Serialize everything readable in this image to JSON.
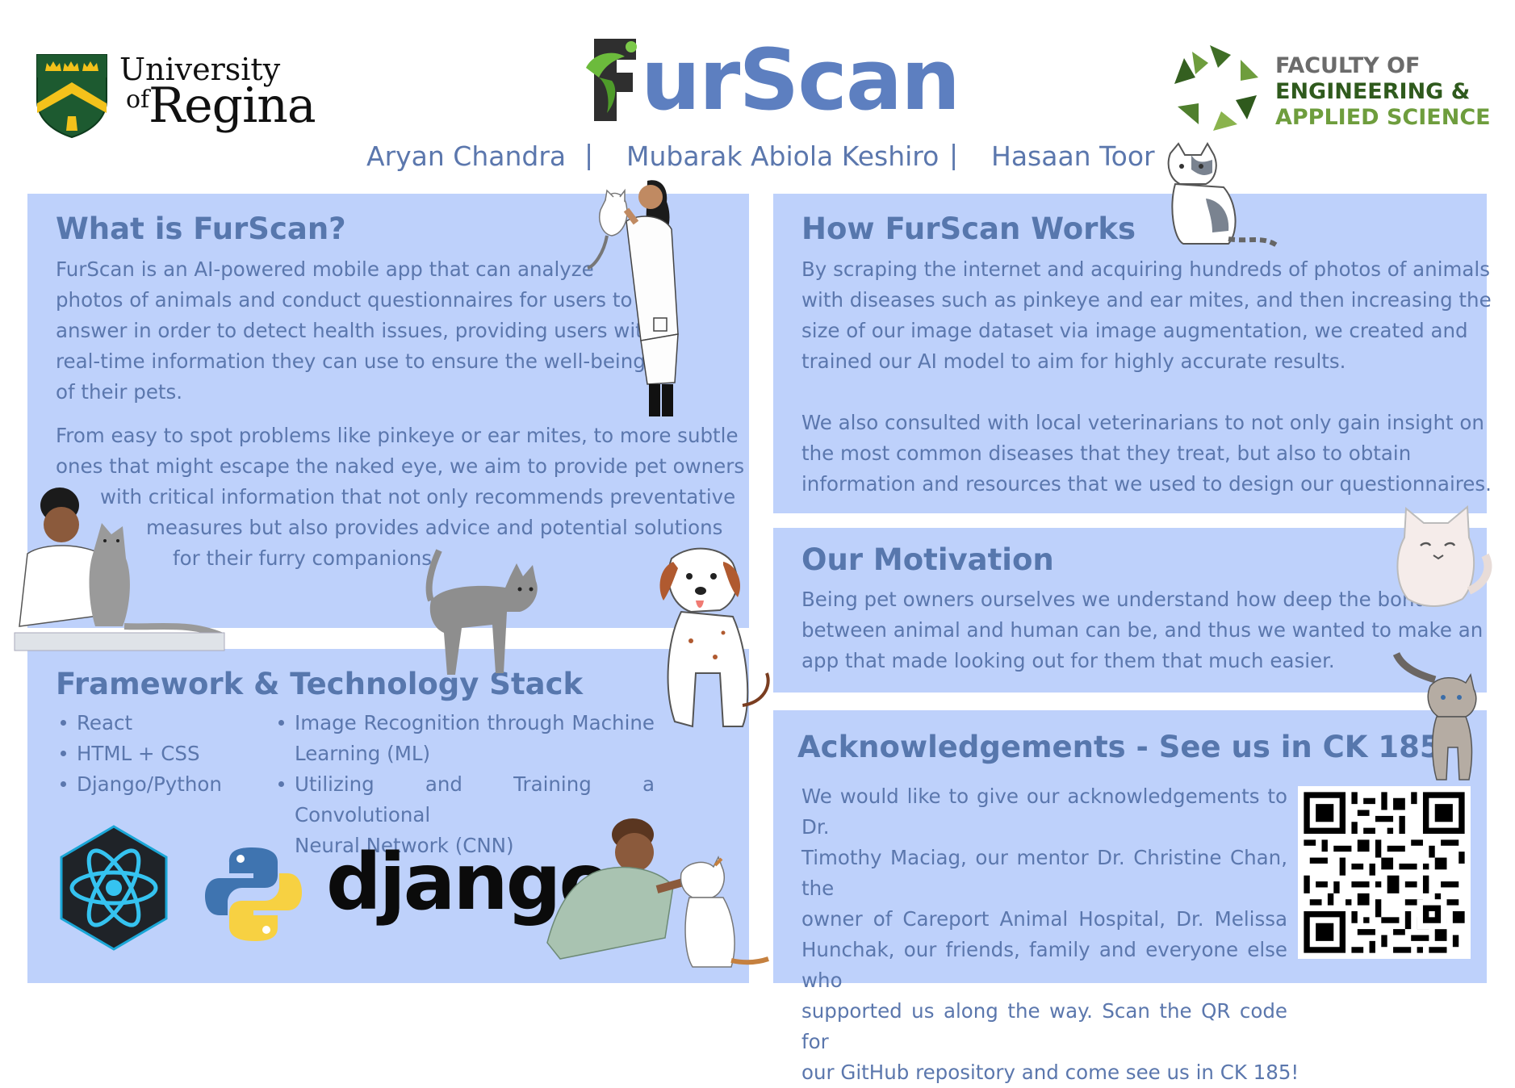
{
  "header": {
    "university": {
      "line1": "University",
      "of": "of",
      "line2": "Regina"
    },
    "title": "FurScan",
    "title_rest": "urScan",
    "authors": [
      "Aryan Chandra",
      "Mubarak Abiola Keshiro",
      "Hasaan Toor"
    ],
    "separator": "|",
    "faculty": {
      "line1": "FACULTY OF",
      "line2": "ENGINEERING &",
      "line3": "APPLIED SCIENCE"
    }
  },
  "what": {
    "heading": "What is FurScan?",
    "p1": [
      "FurScan is an AI-powered mobile app that can analyze",
      "photos of animals and conduct questionnaires for users to",
      "answer in order to detect health issues, providing users with",
      "real-time information they can use to ensure the well-being",
      "of their pets."
    ],
    "p2": [
      "From easy to spot problems like pinkeye or ear mites, to more subtle",
      "ones that might escape the naked eye, we aim to provide pet owners",
      "with critical information that not only recommends preventative",
      "measures but also provides advice and potential solutions",
      "for their furry companions."
    ]
  },
  "framework": {
    "heading": "Framework & Technology Stack",
    "col1": [
      "React",
      "HTML + CSS",
      "Django/Python"
    ],
    "col2": [
      {
        "line1": "Image Recognition through Machine",
        "line2": "Learning (ML)"
      },
      {
        "line1": "Utilizing and Training a Convolutional",
        "line2": "Neural Network (CNN)"
      }
    ],
    "django_logo": "django"
  },
  "how": {
    "heading": "How FurScan Works",
    "p1": [
      "By scraping the internet and acquiring hundreds of photos of animals",
      "with diseases such as pinkeye and ear mites, and then increasing the",
      "size of our image dataset via image augmentation, we created and",
      "trained our AI model to aim for highly accurate results."
    ],
    "p2": [
      "We also consulted with local veterinarians to not only gain insight on",
      "the most common diseases that they treat, but also to obtain",
      "information and resources that we used to design our questionnaires."
    ]
  },
  "motivation": {
    "heading": "Our Motivation",
    "lines": [
      "Being pet owners ourselves we understand how deep the bond",
      "between animal and human can be, and thus we wanted to make an",
      "app that made looking out for them that much easier."
    ]
  },
  "ack": {
    "heading": "Acknowledgements - See us in CK 185",
    "lines": [
      "We would like to give our acknowledgements to Dr.",
      "Timothy Maciag, our mentor Dr. Christine Chan, the",
      "owner of Careport Animal Hospital, Dr. Melissa",
      "Hunchak, our friends, family and everyone else who",
      "supported us along the way. Scan the QR code for",
      "our GitHub repository and come see us in CK 185!"
    ]
  },
  "colors": {
    "panel": "#bed1fb",
    "heading": "#5777ad",
    "text": "#5b77ad",
    "title": "#5d7fc0",
    "faculty_gray": "#6b6b6b",
    "faculty_green": "#3e6b25"
  },
  "icons": [
    "university-crest-icon",
    "faculty-star-logo-icon",
    "react-logo-icon",
    "python-logo-icon",
    "qr-code-icon",
    "cat-icon",
    "dog-icon",
    "vet-icon"
  ]
}
